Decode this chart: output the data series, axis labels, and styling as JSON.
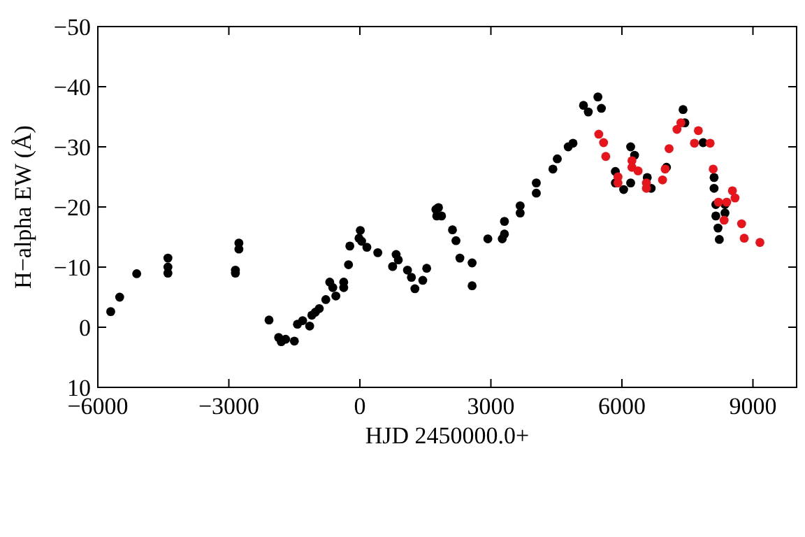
{
  "chart_data": {
    "type": "scatter",
    "xlabel": "HJD 2450000.0+",
    "ylabel": "H−alpha EW (Å)",
    "xlim": [
      -6000,
      10000
    ],
    "ylim": [
      10,
      -50
    ],
    "xticks": [
      -6000,
      -3000,
      0,
      3000,
      6000,
      9000
    ],
    "yticks": [
      10,
      0,
      -10,
      -20,
      -30,
      -40,
      -50
    ],
    "grid": false,
    "marker": "circle",
    "series": [
      {
        "color": "#000000",
        "x": [
          -5705,
          -5500,
          -5110,
          -4395,
          -4395,
          -4395,
          -2850,
          -2850,
          -2770,
          -2770,
          -2080,
          -1860,
          -1800,
          -1700,
          -1500,
          -1430,
          -1310,
          -1150,
          -1100,
          -1020,
          -930,
          -780,
          -690,
          -620,
          -550,
          -370,
          -370,
          -260,
          -230,
          -20,
          10,
          40,
          160,
          410,
          750,
          830,
          880,
          1090,
          1180,
          1260,
          1440,
          1530,
          1740,
          1760,
          1800,
          1870,
          2120,
          2200,
          2290,
          2570,
          2570,
          2930,
          3260,
          3310,
          3310,
          3670,
          3670,
          4040,
          4040,
          4420,
          4520,
          4770,
          4880,
          5120,
          5230,
          5450,
          5530,
          5850,
          5850,
          6040,
          6200,
          6200,
          6290,
          6580,
          6670,
          7020,
          7400,
          7440,
          7860,
          8110,
          8110,
          8150,
          8150,
          8200,
          8230,
          8360,
          8360
        ],
        "values": [
          -2.6,
          -5,
          -8.9,
          -11.5,
          -10,
          -9,
          -9.5,
          -9,
          -14,
          -13,
          -1.2,
          1.7,
          2.4,
          2,
          2.3,
          -0.5,
          -1.1,
          -0.2,
          -2,
          -2.5,
          -3.1,
          -4.6,
          -7.5,
          -6.6,
          -5.2,
          -7.5,
          -6.6,
          -10.4,
          -13.5,
          -14.8,
          -16.1,
          -14.3,
          -13.3,
          -12.4,
          -10.1,
          -12.1,
          -11.2,
          -9.5,
          -8.3,
          -6.4,
          -7.8,
          -9.8,
          -19.6,
          -18.5,
          -19.9,
          -18.5,
          -16.2,
          -14.4,
          -11.5,
          -10.7,
          -6.9,
          -14.7,
          -14.7,
          -17.6,
          -15.5,
          -20.2,
          -19,
          -24,
          -22.3,
          -26.3,
          -28,
          -30,
          -30.6,
          -36.9,
          -35.8,
          -38.3,
          -36.4,
          -25.9,
          -24,
          -22.9,
          -30,
          -24,
          -28.6,
          -24.9,
          -23.1,
          -26.6,
          -36.2,
          -34,
          -30.7,
          -24.9,
          -23.1,
          -20.4,
          -18.5,
          -16.5,
          -14.6,
          -19,
          -20.4
        ]
      },
      {
        "color": "#e8141c",
        "x": [
          5470,
          5580,
          5630,
          5910,
          5910,
          6230,
          6230,
          6370,
          6560,
          6560,
          6930,
          6990,
          7080,
          7260,
          7350,
          7660,
          7750,
          8020,
          8090,
          8210,
          8340,
          8400,
          8530,
          8590,
          8740,
          8800,
          9160
        ],
        "values": [
          -32.1,
          -30.7,
          -28.4,
          -25,
          -24,
          -27.7,
          -26.6,
          -26,
          -24,
          -23.1,
          -24.5,
          -26.3,
          -29.7,
          -32.9,
          -34,
          -30.6,
          -32.7,
          -30.6,
          -26.3,
          -20.8,
          -17.8,
          -20.8,
          -22.7,
          -21.5,
          -17.2,
          -14.8,
          -14.1
        ]
      }
    ]
  }
}
